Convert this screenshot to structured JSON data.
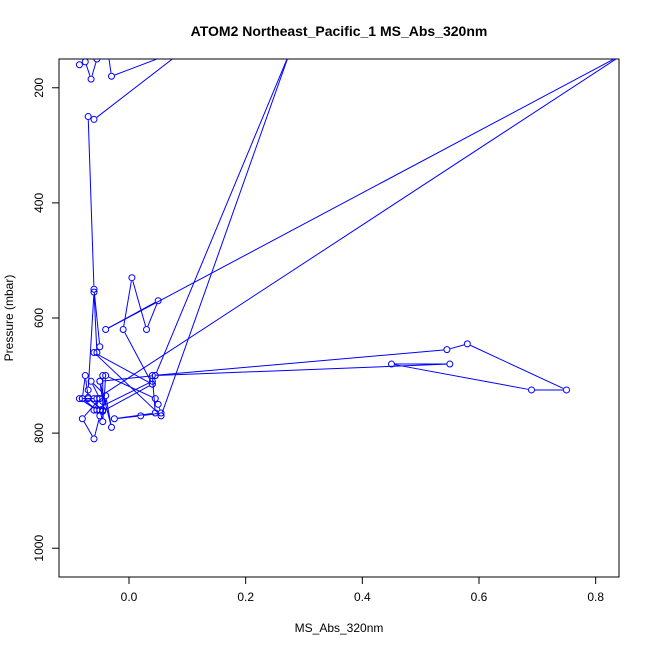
{
  "chart_data": {
    "type": "line",
    "title": "ATOM2 Northeast_Pacific_1 MS_Abs_320nm",
    "xlabel": "MS_Abs_320nm",
    "ylabel": "Pressure (mbar)",
    "xlim": [
      -0.12,
      0.84
    ],
    "ylim": [
      1050,
      150
    ],
    "y_reversed": true,
    "x_ticks": [
      "0.0",
      "0.2",
      "0.4",
      "0.6",
      "0.8"
    ],
    "x_tick_values": [
      0.0,
      0.2,
      0.4,
      0.6,
      0.8
    ],
    "y_ticks": [
      "200",
      "400",
      "600",
      "800",
      "1000"
    ],
    "y_tick_values": [
      200,
      400,
      600,
      800,
      1000
    ],
    "grid": false,
    "series_color": "#0000ff",
    "series": [
      {
        "x": [
          -0.085,
          -0.075,
          -0.065,
          -0.055,
          -0.045,
          -0.035,
          -0.03,
          0.1,
          -0.06,
          -0.07,
          -0.06,
          -0.05,
          -0.055,
          -0.06,
          -0.07,
          -0.07,
          -0.075,
          -0.08,
          -0.06,
          -0.05,
          -0.045,
          -0.04,
          0.045,
          0.05,
          0.055,
          0.02,
          -0.025,
          0.045,
          0.04,
          0.545,
          0.58,
          0.75,
          0.69,
          0.45,
          0.55,
          0.045,
          -0.05,
          -0.03,
          -0.04,
          -0.065,
          -0.05,
          -0.08,
          -0.06,
          -0.05,
          -0.045,
          0.04,
          0.04,
          -0.06,
          -0.05,
          -0.045,
          -0.05,
          -0.045,
          -0.045,
          -0.07,
          -0.08,
          -0.055,
          -0.085,
          -0.055,
          0.85,
          -0.04,
          0.05,
          0.03,
          0.005,
          -0.01,
          0.04,
          -0.06,
          0.055,
          0.275,
          0.045
        ],
        "y": [
          160,
          155,
          185,
          150,
          145,
          145,
          180,
          130,
          255,
          250,
          550,
          650,
          660,
          555,
          725,
          738,
          700,
          740,
          740,
          760,
          780,
          700,
          740,
          750,
          765,
          770,
          775,
          765,
          700,
          655,
          645,
          725,
          725,
          680,
          680,
          700,
          710,
          790,
          735,
          710,
          740,
          775,
          810,
          770,
          762,
          715,
          710,
          760,
          740,
          745,
          710,
          700,
          760,
          740,
          740,
          760,
          740,
          740,
          140,
          620,
          570,
          620,
          530,
          620,
          715,
          660,
          770,
          140,
          700
        ]
      }
    ]
  }
}
